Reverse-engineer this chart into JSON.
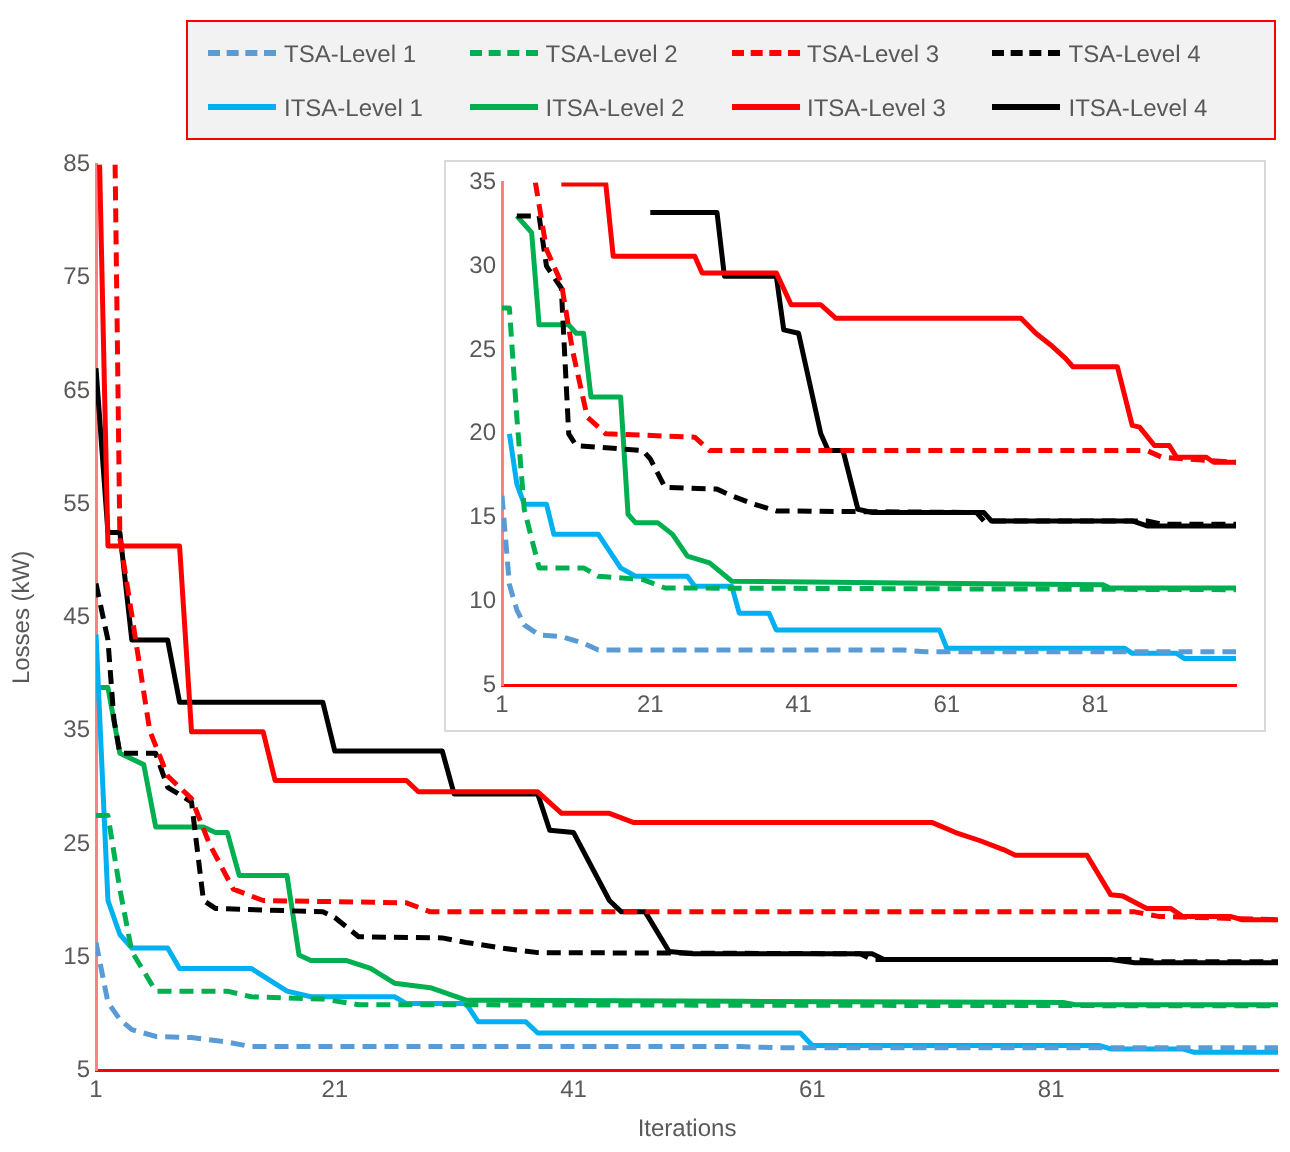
{
  "chart_data": [
    {
      "type": "line",
      "xlabel": "Iterations",
      "ylabel": "Losses (kW)",
      "xlim": [
        1,
        100
      ],
      "xticks": [
        1,
        21,
        41,
        61,
        81
      ],
      "ylim": [
        5,
        85
      ],
      "yticks": [
        5,
        15,
        25,
        35,
        45,
        55,
        65,
        75,
        85
      ],
      "grid": false,
      "legend": "top",
      "marker": "none",
      "series": [
        {
          "name": "TSA-Level 1",
          "color": "#5b9bd5",
          "line_style": "dashed",
          "x": [
            1,
            2,
            3,
            4,
            6,
            9,
            12,
            14,
            55,
            58,
            100
          ],
          "values": [
            16.3,
            11,
            9.5,
            8.6,
            8,
            7.9,
            7.5,
            7.1,
            7.1,
            7.0,
            7.0
          ]
        },
        {
          "name": "TSA-Level 2",
          "color": "#00b050",
          "line_style": "dashed",
          "x": [
            1,
            2,
            3,
            4,
            6,
            12,
            14,
            20,
            23,
            100
          ],
          "values": [
            27.5,
            27.5,
            21,
            15.5,
            12,
            12,
            11.5,
            11.3,
            10.8,
            10.7
          ]
        },
        {
          "name": "TSA-Level 3",
          "color": "#ff0000",
          "line_style": "dashed",
          "x": [
            2.6,
            3,
            5.5,
            7,
            9,
            10.5,
            12.5,
            15,
            27,
            29,
            88,
            90,
            100
          ],
          "values": [
            85,
            52,
            35,
            31,
            29,
            25,
            21,
            20,
            19.8,
            19,
            19,
            18.6,
            18.3
          ]
        },
        {
          "name": "TSA-Level 4",
          "color": "#000000",
          "line_style": "dashed",
          "x": [
            1,
            2,
            2.5,
            3,
            6,
            7,
            9,
            10,
            11,
            20,
            21,
            23,
            30,
            32,
            35,
            38,
            65,
            66,
            88,
            90,
            100
          ],
          "values": [
            48,
            43,
            36,
            33,
            33,
            30,
            28.7,
            20,
            19.3,
            19,
            18.5,
            16.8,
            16.7,
            16.3,
            15.8,
            15.4,
            15.3,
            14.8,
            14.8,
            14.6,
            14.6
          ]
        },
        {
          "name": "ITSA-Level 1",
          "color": "#00b0f0",
          "line_style": "solid",
          "x": [
            1,
            2,
            3,
            4,
            7,
            8,
            14,
            17,
            19,
            26,
            27,
            32,
            33,
            37,
            38,
            60,
            61,
            85,
            86,
            92,
            93,
            100
          ],
          "values": [
            43.5,
            20,
            17,
            15.8,
            15.8,
            14,
            14,
            12,
            11.5,
            11.5,
            10.9,
            10.9,
            9.3,
            9.3,
            8.3,
            8.3,
            7.2,
            7.2,
            6.9,
            6.9,
            6.6,
            6.6
          ]
        },
        {
          "name": "ITSA-Level 2",
          "color": "#00b050",
          "line_style": "solid",
          "x": [
            1,
            2,
            3,
            5,
            6,
            10,
            11,
            12,
            13,
            17,
            18,
            19,
            22,
            24,
            26,
            29,
            32,
            55,
            82,
            83,
            100
          ],
          "values": [
            38.8,
            38.8,
            33,
            32,
            26.5,
            26.5,
            26,
            26,
            22.2,
            22.2,
            15.2,
            14.7,
            14.7,
            14,
            12.7,
            12.3,
            11.2,
            11.1,
            11.0,
            10.8,
            10.8
          ]
        },
        {
          "name": "ITSA-Level 3",
          "color": "#ff0000",
          "line_style": "solid",
          "x": [
            1.3,
            2,
            8,
            9,
            15,
            16,
            27,
            28,
            38,
            40,
            44,
            46,
            71,
            73,
            75,
            77,
            78,
            84,
            86,
            87,
            89,
            91,
            92,
            96,
            97,
            100
          ],
          "values": [
            85,
            51.3,
            51.3,
            34.9,
            34.9,
            30.6,
            30.6,
            29.6,
            29.6,
            27.7,
            27.7,
            26.9,
            26.9,
            26,
            25.3,
            24.5,
            24,
            24,
            20.5,
            20.4,
            19.3,
            19.3,
            18.6,
            18.6,
            18.3,
            18.3
          ]
        },
        {
          "name": "ITSA-Level 4",
          "color": "#000000",
          "line_style": "solid",
          "x": [
            1,
            2,
            3,
            4,
            7,
            8,
            20,
            21,
            30,
            31,
            38,
            39,
            41,
            44,
            45,
            47,
            49,
            51,
            66,
            67,
            86,
            88,
            100
          ],
          "values": [
            67,
            52.5,
            52.5,
            43,
            43,
            37.5,
            37.5,
            33.2,
            33.2,
            29.4,
            29.4,
            26.2,
            26,
            20,
            19,
            19,
            15.5,
            15.3,
            15.3,
            14.8,
            14.8,
            14.5,
            14.5
          ]
        }
      ]
    },
    {
      "type": "line",
      "xlim": [
        1,
        100
      ],
      "xticks": [
        1,
        21,
        41,
        61,
        81
      ],
      "ylim": [
        5,
        35
      ],
      "yticks": [
        5,
        10,
        15,
        20,
        25,
        30,
        35
      ],
      "grid": false,
      "marker": "none",
      "series": [
        {
          "color": "#5b9bd5",
          "line_style": "dashed",
          "x": [
            1,
            2,
            3,
            4,
            6,
            9,
            12,
            14,
            55,
            58,
            100
          ],
          "values": [
            16.3,
            11,
            9.5,
            8.6,
            8,
            7.9,
            7.5,
            7.1,
            7.1,
            7.0,
            7.0
          ]
        },
        {
          "color": "#00b050",
          "line_style": "dashed",
          "x": [
            1,
            2,
            3,
            4,
            6,
            12,
            14,
            20,
            23,
            100
          ],
          "values": [
            27.5,
            27.5,
            21,
            15.5,
            12,
            12,
            11.5,
            11.3,
            10.8,
            10.7
          ]
        },
        {
          "color": "#ff0000",
          "line_style": "dashed",
          "x": [
            5.5,
            7,
            9,
            10.5,
            12.5,
            15,
            27,
            29,
            88,
            90,
            100
          ],
          "values": [
            35,
            31,
            29,
            25,
            21,
            20,
            19.8,
            19,
            19,
            18.6,
            18.3
          ]
        },
        {
          "color": "#000000",
          "line_style": "dashed",
          "x": [
            3,
            6,
            7,
            9,
            10,
            11,
            20,
            21,
            23,
            30,
            32,
            35,
            38,
            65,
            66,
            88,
            90,
            100
          ],
          "values": [
            33,
            33,
            30,
            28.7,
            20,
            19.3,
            19,
            18.5,
            16.8,
            16.7,
            16.3,
            15.8,
            15.4,
            15.3,
            14.8,
            14.8,
            14.6,
            14.6
          ]
        },
        {
          "color": "#00b0f0",
          "line_style": "solid",
          "x": [
            2,
            3,
            4,
            7,
            8,
            14,
            17,
            19,
            26,
            27,
            32,
            33,
            37,
            38,
            60,
            61,
            85,
            86,
            92,
            93,
            100
          ],
          "values": [
            20,
            17,
            15.8,
            15.8,
            14,
            14,
            12,
            11.5,
            11.5,
            10.9,
            10.9,
            9.3,
            9.3,
            8.3,
            8.3,
            7.2,
            7.2,
            6.9,
            6.9,
            6.6,
            6.6
          ]
        },
        {
          "color": "#00b050",
          "line_style": "solid",
          "x": [
            3,
            5,
            6,
            10,
            11,
            12,
            13,
            17,
            18,
            19,
            22,
            24,
            26,
            29,
            32,
            55,
            82,
            83,
            100
          ],
          "values": [
            33,
            32,
            26.5,
            26.5,
            26,
            26,
            22.2,
            22.2,
            15.2,
            14.7,
            14.7,
            14,
            12.7,
            12.3,
            11.2,
            11.1,
            11.0,
            10.8,
            10.8
          ]
        },
        {
          "color": "#ff0000",
          "line_style": "solid",
          "x": [
            9,
            15,
            16,
            27,
            28,
            38,
            40,
            44,
            46,
            71,
            73,
            75,
            77,
            78,
            84,
            86,
            87,
            89,
            91,
            92,
            96,
            97,
            100
          ],
          "values": [
            34.9,
            34.9,
            30.6,
            30.6,
            29.6,
            29.6,
            27.7,
            27.7,
            26.9,
            26.9,
            26,
            25.3,
            24.5,
            24,
            24,
            20.5,
            20.4,
            19.3,
            19.3,
            18.6,
            18.6,
            18.3,
            18.3
          ]
        },
        {
          "color": "#000000",
          "line_style": "solid",
          "x": [
            21,
            30,
            31,
            38,
            39,
            41,
            44,
            45,
            47,
            49,
            51,
            66,
            67,
            86,
            88,
            100
          ],
          "values": [
            33.2,
            33.2,
            29.4,
            29.4,
            26.2,
            26,
            20,
            19,
            19,
            15.5,
            15.3,
            15.3,
            14.8,
            14.8,
            14.5,
            14.5
          ]
        }
      ]
    }
  ]
}
